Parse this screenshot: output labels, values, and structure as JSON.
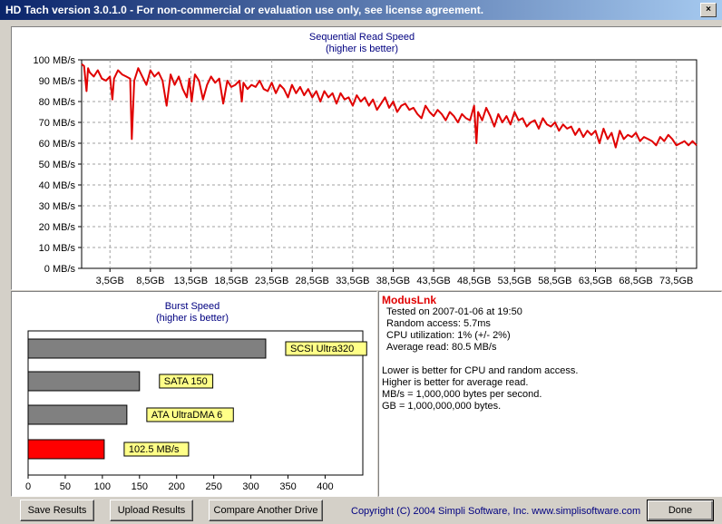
{
  "window": {
    "title": "HD Tach version 3.0.1.0  - For non-commercial or evaluation use only, see license agreement.",
    "close_glyph": "×"
  },
  "sequential_chart": {
    "title_line1": "Sequential Read Speed",
    "title_line2": "(higher is better)",
    "line_color": "#e00000"
  },
  "burst_chart": {
    "title_line1": "Burst Speed",
    "title_line2": "(higher is better)"
  },
  "chart_data": [
    {
      "type": "line",
      "title": "Sequential Read Speed",
      "subtitle": "(higher is better)",
      "ylim": [
        0,
        100
      ],
      "y_ticks": [
        0,
        10,
        20,
        30,
        40,
        50,
        60,
        70,
        80,
        90,
        100
      ],
      "y_tick_labels": [
        "0 MB/s",
        "10 MB/s",
        "20 MB/s",
        "30 MB/s",
        "40 MB/s",
        "50 MB/s",
        "60 MB/s",
        "70 MB/s",
        "80 MB/s",
        "90 MB/s",
        "100 MB/s"
      ],
      "xlim": [
        0,
        76
      ],
      "x_ticks": [
        3.5,
        8.5,
        13.5,
        18.5,
        23.5,
        28.5,
        33.5,
        38.5,
        43.5,
        48.5,
        53.5,
        58.5,
        63.5,
        68.5,
        73.5
      ],
      "x_tick_labels": [
        "3,5GB",
        "8,5GB",
        "13,5GB",
        "18,5GB",
        "23,5GB",
        "28,5GB",
        "33,5GB",
        "38,5GB",
        "43,5GB",
        "48,5GB",
        "53,5GB",
        "58,5GB",
        "63,5GB",
        "68,5GB",
        "73,5GB"
      ],
      "grid": true,
      "series": [
        {
          "x": [
            0,
            0.3,
            0.6,
            0.8,
            1,
            1.5,
            2,
            2.5,
            3,
            3.5,
            3.8,
            4,
            4.5,
            5,
            5.5,
            6,
            6.2,
            6.5,
            7,
            7.5,
            8,
            8.5,
            9,
            9.5,
            10,
            10.5,
            11,
            11.5,
            12,
            12.5,
            13,
            13.3,
            13.6,
            14,
            14.5,
            15,
            15.5,
            16,
            16.5,
            17,
            17.5,
            18,
            18.5,
            19,
            19.5,
            19.8,
            20,
            20.5,
            21,
            21.5,
            22,
            22.5,
            23,
            23.5,
            24,
            24.5,
            25,
            25.5,
            26,
            26.5,
            27,
            27.5,
            28,
            28.5,
            29,
            29.5,
            30,
            30.5,
            31,
            31.5,
            32,
            32.5,
            33,
            33.5,
            34,
            34.5,
            35,
            35.5,
            36,
            36.5,
            37,
            37.5,
            38,
            38.5,
            39,
            39.5,
            40,
            40.5,
            41,
            41.5,
            42,
            42.5,
            43,
            43.5,
            44,
            44.5,
            45,
            45.5,
            46,
            46.5,
            47,
            47.5,
            48,
            48.5,
            48.8,
            49,
            49.5,
            50,
            50.5,
            51,
            51.5,
            52,
            52.5,
            53,
            53.5,
            54,
            54.5,
            55,
            55.5,
            56,
            56.5,
            57,
            57.5,
            58,
            58.5,
            59,
            59.5,
            60,
            60.5,
            61,
            61.5,
            62,
            62.5,
            63,
            63.5,
            64,
            64.5,
            65,
            65.5,
            66,
            66.5,
            67,
            67.5,
            68,
            68.5,
            69,
            69.5,
            70,
            70.5,
            71,
            71.5,
            72,
            72.5,
            73,
            73.5,
            74,
            74.5,
            75,
            75.5,
            76
          ],
          "values": [
            98,
            97,
            85,
            96,
            94,
            92,
            95,
            91,
            90,
            92,
            81,
            91,
            95,
            93,
            92,
            91,
            62,
            90,
            96,
            92,
            88,
            95,
            92,
            94,
            90,
            78,
            93,
            88,
            92,
            86,
            82,
            91,
            80,
            93,
            90,
            81,
            88,
            92,
            89,
            91,
            79,
            90,
            87,
            88,
            90,
            80,
            89,
            86,
            88,
            87,
            90,
            86,
            85,
            89,
            84,
            88,
            86,
            82,
            88,
            84,
            87,
            83,
            86,
            82,
            85,
            80,
            85,
            82,
            84,
            79,
            84,
            81,
            82,
            78,
            83,
            80,
            82,
            78,
            81,
            76,
            79,
            82,
            77,
            80,
            75,
            78,
            79,
            76,
            77,
            74,
            72,
            78,
            75,
            73,
            76,
            74,
            71,
            75,
            73,
            70,
            74,
            72,
            71,
            78,
            60,
            75,
            71,
            77,
            73,
            68,
            74,
            70,
            73,
            69,
            75,
            71,
            72,
            68,
            70,
            71,
            67,
            72,
            69,
            68,
            70,
            66,
            69,
            67,
            68,
            64,
            67,
            63,
            66,
            64,
            66,
            60,
            67,
            62,
            65,
            58,
            66,
            62,
            64,
            63,
            65,
            61,
            63,
            62,
            61,
            59,
            63,
            61,
            64,
            62,
            59,
            60,
            61,
            59,
            61,
            59
          ],
          "color": "#e00000"
        }
      ]
    },
    {
      "type": "bar",
      "orientation": "horizontal",
      "title": "Burst Speed",
      "subtitle": "(higher is better)",
      "xlim": [
        0,
        430
      ],
      "x_ticks": [
        0,
        50,
        100,
        150,
        200,
        250,
        300,
        350,
        400
      ],
      "x_tick_labels": [
        "0",
        "50",
        "100",
        "150",
        "200",
        "250",
        "300",
        "350",
        "400"
      ],
      "grid": false,
      "categories": [
        "SCSI Ultra320",
        "SATA 150",
        "ATA UltraDMA 6",
        "102.5 MB/s"
      ],
      "values": [
        320,
        150,
        133,
        102.5
      ],
      "colors": [
        "#808080",
        "#808080",
        "#808080",
        "#ff0000"
      ],
      "label_color": "#ffff88"
    }
  ],
  "info": {
    "drive_name": "ModusLnk",
    "tested_on": "Tested on 2007-01-06 at 19:50",
    "random_access": "Random access: 5.7ms",
    "cpu_utilization": "CPU utilization: 1% (+/- 2%)",
    "average_read": "Average read: 80.5 MB/s",
    "note1": "Lower is better for CPU and random access.",
    "note2": "Higher is better for average read.",
    "note3": "MB/s = 1,000,000 bytes per second.",
    "note4": "GB = 1,000,000,000 bytes."
  },
  "buttons": {
    "save": "Save Results",
    "upload": "Upload Results",
    "compare": "Compare Another Drive",
    "done": "Done"
  },
  "footer": {
    "copyright": "Copyright (C) 2004 Simpli Software, Inc. www.simplisoftware.com"
  }
}
